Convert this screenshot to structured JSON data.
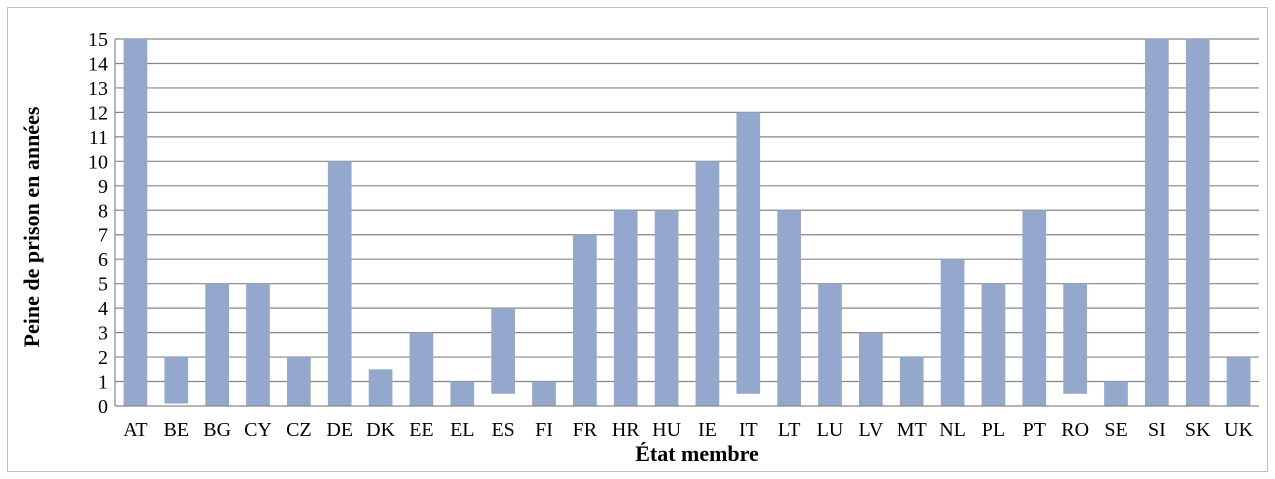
{
  "chart_data": {
    "type": "bar",
    "title": "",
    "xlabel": "État membre",
    "ylabel": "Peine de prison en années",
    "categories": [
      "AT",
      "BE",
      "BG",
      "CY",
      "CZ",
      "DE",
      "DK",
      "EE",
      "EL",
      "ES",
      "FI",
      "FR",
      "HR",
      "HU",
      "IE",
      "IT",
      "LT",
      "LU",
      "LV",
      "MT",
      "NL",
      "PL",
      "PT",
      "RO",
      "SE",
      "SI",
      "SK",
      "UK"
    ],
    "series": [
      {
        "min": [
          0,
          0.1,
          0,
          0,
          0,
          0,
          0,
          0,
          0,
          0.5,
          0,
          0,
          0,
          0,
          0,
          0.5,
          0,
          0,
          0,
          0,
          0,
          0,
          0,
          0.5,
          0,
          0,
          0,
          0
        ],
        "max": [
          15,
          2,
          5,
          5,
          2,
          10,
          1.5,
          3,
          1,
          4,
          1,
          7,
          8,
          8,
          10,
          12,
          8,
          5,
          3,
          2,
          6,
          5,
          8,
          5,
          1,
          15,
          15,
          2
        ]
      }
    ],
    "ylim": [
      0,
      15
    ],
    "yticks": [
      0,
      1,
      2,
      3,
      4,
      5,
      6,
      7,
      8,
      9,
      10,
      11,
      12,
      13,
      14,
      15
    ],
    "grid": true,
    "bar_color": "#94a7cc",
    "grid_color": "#868686"
  }
}
